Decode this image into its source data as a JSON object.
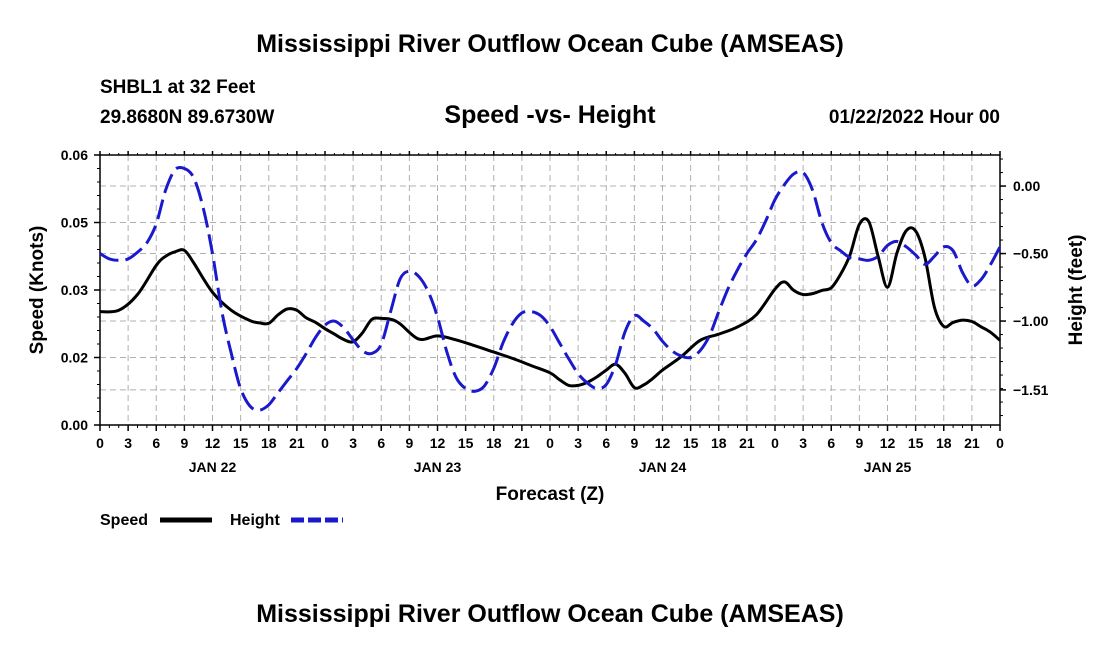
{
  "title": "Mississippi River Outflow Ocean Cube (AMSEAS)",
  "bottom_title": "Mississippi River Outflow Ocean Cube (AMSEAS)",
  "station": "SHBL1 at 32 Feet",
  "coords": "29.8680N  89.6730W",
  "subtitle": "Speed -vs- Height",
  "datetime": "01/22/2022 Hour 00",
  "legend": {
    "speed": "Speed",
    "height": "Height"
  },
  "colors": {
    "speed": "#000000",
    "height": "#1a1acc",
    "grid": "#b0b0b0"
  },
  "chart_data": {
    "type": "line",
    "title": "Speed -vs- Height",
    "xlabel": "Forecast (Z)",
    "ylabel": "Speed (Knots)",
    "y2label": "Height (feet)",
    "xlim": [
      0,
      96
    ],
    "ylim": [
      0,
      0.06
    ],
    "y2lim": [
      -1.77,
      0.23
    ],
    "x_tick_labels": [
      "0",
      "3",
      "6",
      "9",
      "12",
      "15",
      "18",
      "21",
      "0",
      "3",
      "6",
      "9",
      "12",
      "15",
      "18",
      "21",
      "0",
      "3",
      "6",
      "9",
      "12",
      "15",
      "18",
      "21",
      "0",
      "3",
      "6",
      "9",
      "12",
      "15",
      "18",
      "21",
      "0"
    ],
    "day_labels": [
      {
        "label": "JAN 22",
        "x": 12
      },
      {
        "label": "JAN 23",
        "x": 36
      },
      {
        "label": "JAN 24",
        "x": 60
      },
      {
        "label": "JAN 25",
        "x": 84
      }
    ],
    "y_ticks": [
      0,
      0.015,
      0.03,
      0.045,
      0.06
    ],
    "y_tick_labels": [
      "0.00",
      "0.02",
      "0.03",
      "0.05",
      "0.06"
    ],
    "y2_ticks": [
      0.0,
      -0.5,
      -1.0,
      -1.51
    ],
    "y2_tick_labels": [
      "0.00",
      "−0.50",
      "−1.00",
      "−1.51"
    ],
    "series": [
      {
        "name": "Speed",
        "axis": "left",
        "style": "solid",
        "x": [
          0,
          2,
          4,
          6,
          7,
          8,
          9,
          10,
          12,
          14,
          16,
          17,
          18,
          19,
          20,
          21,
          22,
          23,
          24,
          25,
          26,
          27,
          28,
          29,
          30,
          31,
          32,
          34,
          36,
          38,
          40,
          42,
          44,
          46,
          48,
          49,
          50,
          51,
          52,
          53,
          54,
          55,
          56,
          57,
          58,
          59,
          60,
          62,
          64,
          66,
          68,
          70,
          72,
          73,
          74,
          75,
          76,
          77,
          78,
          79,
          80,
          81,
          82,
          83,
          84,
          85,
          86,
          87,
          88,
          89,
          90,
          91,
          92,
          93,
          94,
          95,
          96
        ],
        "values": [
          0.0252,
          0.0255,
          0.029,
          0.0355,
          0.0375,
          0.0385,
          0.0388,
          0.036,
          0.0295,
          0.0255,
          0.0232,
          0.0227,
          0.0226,
          0.0245,
          0.0258,
          0.0255,
          0.0238,
          0.0228,
          0.0214,
          0.0202,
          0.019,
          0.0185,
          0.0205,
          0.0235,
          0.0237,
          0.0235,
          0.0225,
          0.0191,
          0.0198,
          0.0189,
          0.0176,
          0.0162,
          0.0148,
          0.0132,
          0.0116,
          0.0101,
          0.0088,
          0.0088,
          0.0095,
          0.0107,
          0.0122,
          0.0135,
          0.0115,
          0.0083,
          0.0089,
          0.0104,
          0.0122,
          0.0152,
          0.0188,
          0.0202,
          0.0218,
          0.0245,
          0.0302,
          0.0318,
          0.0299,
          0.029,
          0.0292,
          0.0299,
          0.0305,
          0.0335,
          0.0378,
          0.0446,
          0.0452,
          0.0375,
          0.0306,
          0.0382,
          0.0432,
          0.0431,
          0.0372,
          0.0262,
          0.0219,
          0.0228,
          0.0233,
          0.023,
          0.0218,
          0.0206,
          0.0188
        ]
      },
      {
        "name": "Height",
        "axis": "right",
        "style": "dashed",
        "x": [
          0,
          1,
          2,
          3,
          4,
          5,
          6,
          7,
          8,
          9,
          10,
          11,
          12,
          13,
          14,
          15,
          16,
          17,
          18,
          19,
          20,
          21,
          22,
          23,
          24,
          25,
          26,
          27,
          28,
          29,
          30,
          31,
          32,
          33,
          34,
          35,
          36,
          37,
          38,
          39,
          40,
          41,
          42,
          43,
          44,
          45,
          46,
          47,
          48,
          49,
          50,
          51,
          52,
          53,
          54,
          55,
          56,
          57,
          58,
          59,
          60,
          61,
          62,
          63,
          64,
          65,
          66,
          67,
          68,
          69,
          70,
          71,
          72,
          73,
          74,
          75,
          76,
          77,
          78,
          79,
          80,
          81,
          82,
          83,
          84,
          85,
          86,
          87,
          88,
          89,
          90,
          91,
          92,
          93,
          94,
          95,
          96
        ],
        "values": [
          -0.5,
          -0.54,
          -0.55,
          -0.54,
          -0.49,
          -0.42,
          -0.28,
          -0.03,
          0.12,
          0.13,
          0.06,
          -0.16,
          -0.5,
          -0.93,
          -1.24,
          -1.5,
          -1.63,
          -1.66,
          -1.62,
          -1.53,
          -1.44,
          -1.35,
          -1.24,
          -1.12,
          -1.03,
          -1.0,
          -1.05,
          -1.14,
          -1.22,
          -1.24,
          -1.17,
          -0.93,
          -0.69,
          -0.63,
          -0.67,
          -0.78,
          -0.97,
          -1.23,
          -1.42,
          -1.5,
          -1.52,
          -1.48,
          -1.35,
          -1.16,
          -1.02,
          -0.94,
          -0.93,
          -0.96,
          -1.04,
          -1.16,
          -1.28,
          -1.39,
          -1.46,
          -1.5,
          -1.47,
          -1.32,
          -1.08,
          -0.96,
          -1.0,
          -1.06,
          -1.15,
          -1.22,
          -1.26,
          -1.27,
          -1.22,
          -1.11,
          -0.93,
          -0.76,
          -0.62,
          -0.5,
          -0.4,
          -0.26,
          -0.1,
          0.01,
          0.09,
          0.1,
          -0.03,
          -0.27,
          -0.42,
          -0.48,
          -0.53,
          -0.54,
          -0.55,
          -0.52,
          -0.44,
          -0.41,
          -0.45,
          -0.51,
          -0.58,
          -0.52,
          -0.45,
          -0.48,
          -0.64,
          -0.74,
          -0.69,
          -0.58,
          -0.45
        ]
      }
    ]
  }
}
